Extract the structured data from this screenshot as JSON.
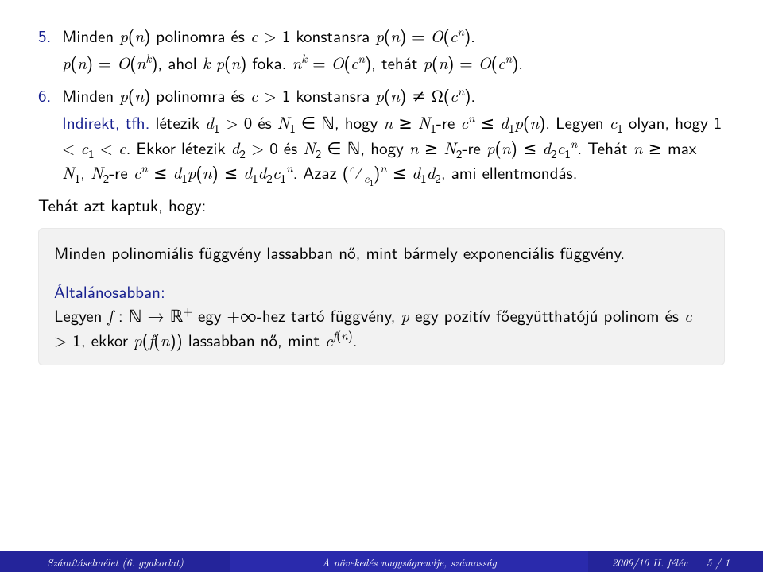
{
  "colors": {
    "accent": "#17208f",
    "footer_dark": "#24249a",
    "footer_mid": "#2a2aac",
    "box_bg": "#f2f2f2",
    "text": "#000000"
  },
  "items": [
    {
      "num": "5.",
      "statement_html": "Minden <i>p</i>(<i>n</i>) polinomra és <i>c</i> &gt; 1 konstansra <i>p</i>(<i>n</i>) = <i>O</i>(<i>c</i><sup><i>n</i></sup>).",
      "proof_html": "<i>p</i>(<i>n</i>) = <i>O</i>(<i>n</i><sup><i>k</i></sup>), ahol <i>k</i> <i>p</i>(<i>n</i>) foka. <i>n</i><sup><i>k</i></sup> = <i>O</i>(<i>c</i><sup><i>n</i></sup>), tehát <i>p</i>(<i>n</i>) = <i>O</i>(<i>c</i><sup><i>n</i></sup>)."
    },
    {
      "num": "6.",
      "statement_html": "Minden <i>p</i>(<i>n</i>) polinomra és <i>c</i> &gt; 1 konstansra <i>p</i>(<i>n</i>) ≠ Ω(<i>c</i><sup><i>n</i></sup>).",
      "proof_label": "Indirekt, tfh.",
      "proof_html": "létezik <i>d</i><sub>1</sub> &gt; 0 és <i>N</i><sub>1</sub> ∈ <span class='bb'>ℕ</span>, hogy <i>n</i> ≥ <i>N</i><sub>1</sub>-re <i>c</i><sup><i>n</i></sup> ≤ <i>d</i><sub>1</sub><i>p</i>(<i>n</i>). Legyen <i>c</i><sub>1</sub> olyan, hogy 1 &lt; <i>c</i><sub>1</sub> &lt; <i>c</i>. Ekkor létezik <i>d</i><sub>2</sub> &gt; 0 és <i>N</i><sub>2</sub> ∈ <span class='bb'>ℕ</span>, hogy <i>n</i> ≥ <i>N</i><sub>2</sub>-re <i>p</i>(<i>n</i>) ≤ <i>d</i><sub>2</sub><i>c</i><sub>1</sub><sup><i>n</i></sup>. Tehát <i>n</i> ≥ max <i>N</i><sub>1</sub>, <i>N</i><sub>2</sub>-re <i>c</i><sup><i>n</i></sup> ≤ <i>d</i><sub>1</sub><i>p</i>(<i>n</i>) ≤ <i>d</i><sub>1</sub><i>d</i><sub>2</sub><i>c</i><sub>1</sub><sup><i>n</i></sup>. Azaz (<sup><i>c</i></sup>⁄<sub><i>c</i><sub>1</sub></sub>)<sup><i>n</i></sup> ≤ <i>d</i><sub>1</sub><i>d</i><sub>2</sub>, ami ellentmondás."
    }
  ],
  "conclusion": "Tehát azt kaptuk, hogy:",
  "box": {
    "theorem_html": "Minden polinomiális függvény lassabban nő, mint bármely exponenciális függvény.",
    "general_label": "Általánosabban:",
    "general_html": "Legyen <i>f</i> : <span class='bb'>ℕ</span> → <span class='bb'>ℝ</span><sup>+</sup> egy +∞-hez tartó függvény, <i>p</i> egy pozitív főegyütthatójú polinom és <i>c</i> &gt; 1, ekkor <i>p</i>(<i>f</i>(<i>n</i>)) lassabban nő, mint <i>c</i><sup><i>f</i>(<i>n</i>)</sup>."
  },
  "footer": {
    "left": "Számításelmélet (6. gyakorlat)",
    "center": "A növekedés nagyságrendje, számosság",
    "right_term": "2009/10 II. félév",
    "right_page": "5 / 1"
  }
}
